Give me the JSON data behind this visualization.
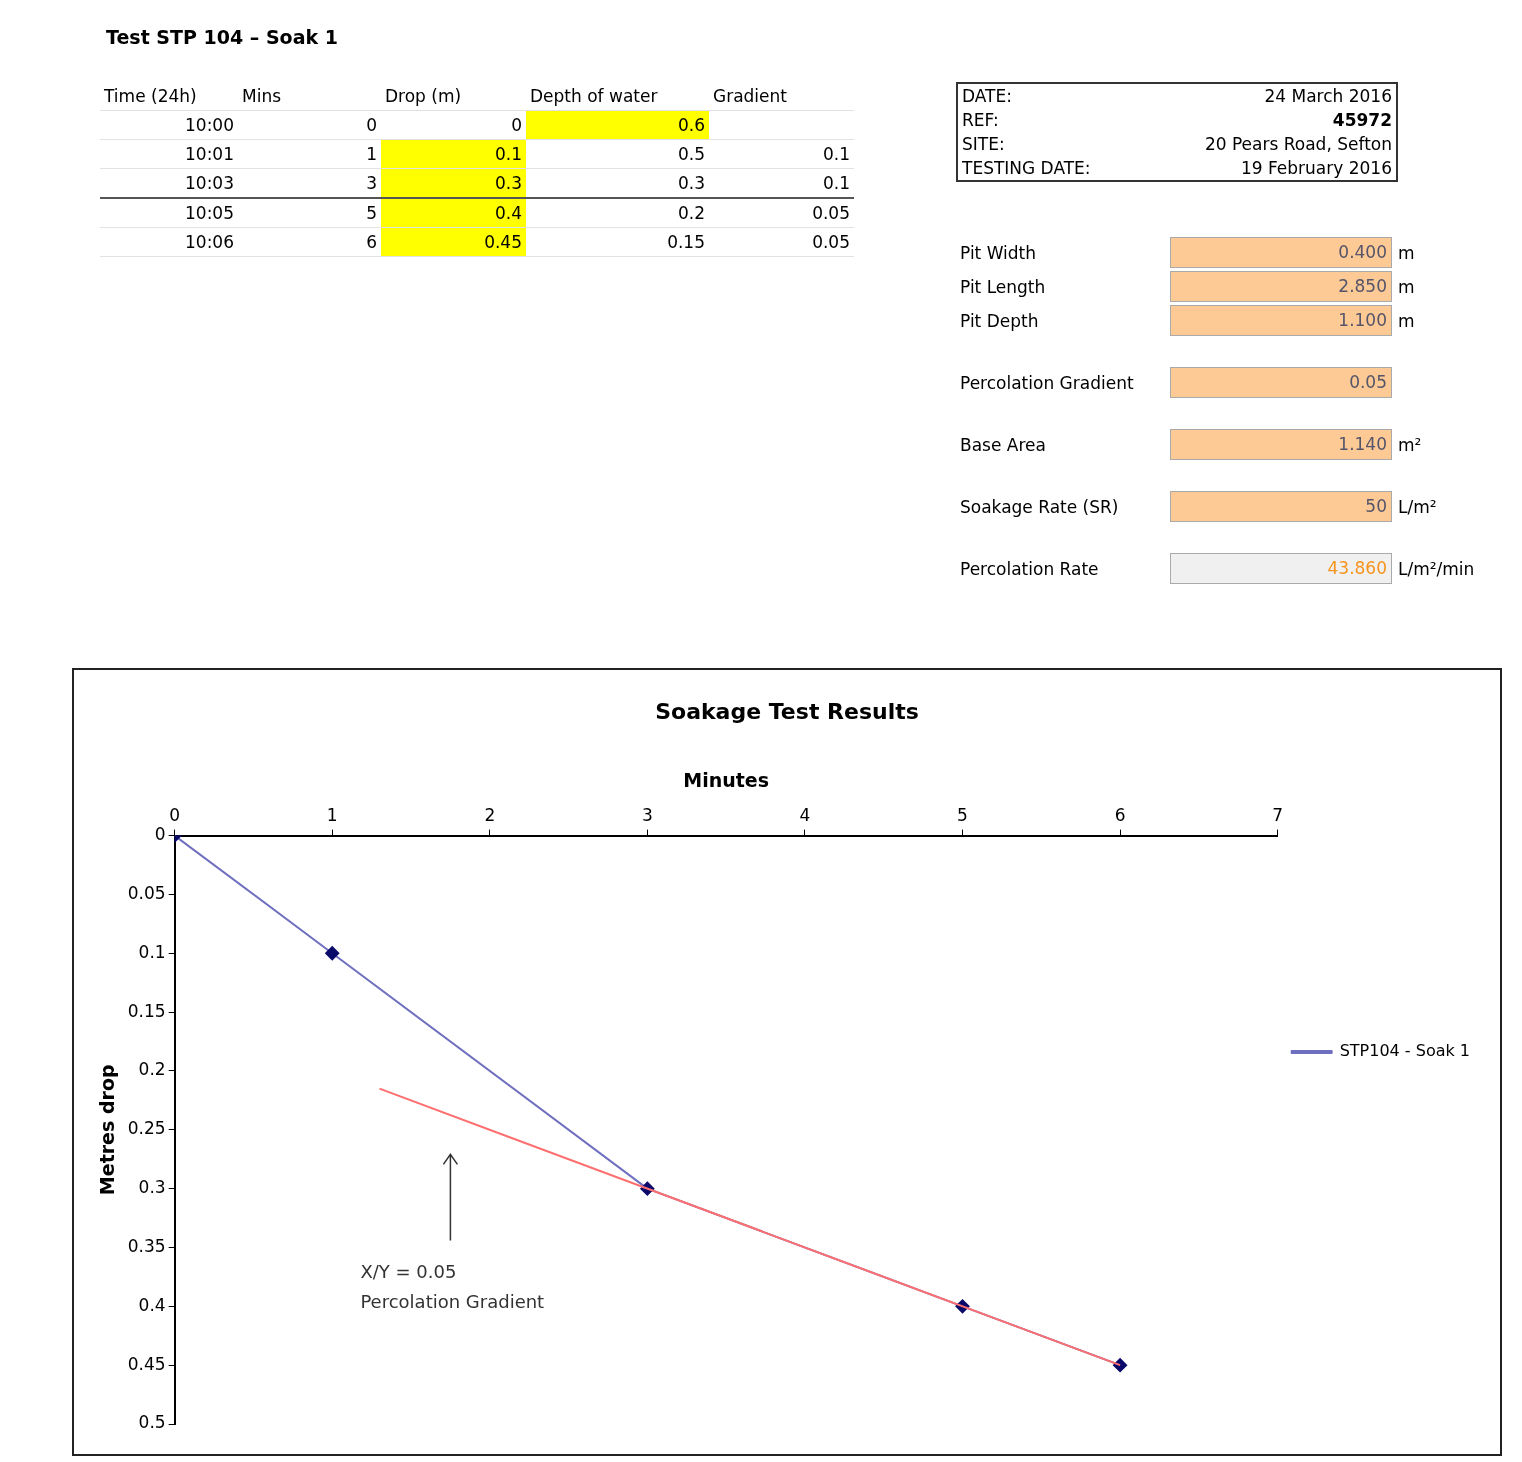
{
  "chart_data": [
    {
      "type": "other",
      "title": "Test STP 104 – Soak 1",
      "categories": [
        "Time (24h)",
        "Mins",
        "Drop (m)",
        "Depth of water",
        "Gradient"
      ],
      "cell_labels": [
        [
          "10:00",
          "0",
          "0",
          "0.6",
          null
        ],
        [
          "10:01",
          "1",
          "0.1",
          "0.5",
          "0.1"
        ],
        [
          "10:03",
          "3",
          "0.3",
          "0.3",
          "0.1"
        ],
        [
          "10:05",
          "5",
          "0.4",
          "0.2",
          "0.05"
        ],
        [
          "10:06",
          "6",
          "0.45",
          "0.15",
          "0.05"
        ]
      ]
    },
    {
      "type": "other",
      "y_categories": [
        "DATE:",
        "REF:",
        "SITE:",
        "TESTING DATE:",
        "Pit Width",
        "Pit Length",
        "Pit Depth",
        "Percolation Gradient",
        "Base Area",
        "Soakage Rate (SR)",
        "Percolation Rate"
      ],
      "cell_labels": [
        [
          "24 March 2016"
        ],
        [
          "45972"
        ],
        [
          "20 Pears Road, Sefton"
        ],
        [
          "19 February 2016"
        ],
        [
          "0.400",
          "m"
        ],
        [
          "2.850",
          "m"
        ],
        [
          "1.100",
          "m"
        ],
        [
          "0.05",
          null
        ],
        [
          "1.140",
          "m²"
        ],
        [
          "50",
          "L/m²"
        ],
        [
          "43.860",
          "L/m²/min"
        ]
      ]
    },
    {
      "type": "line",
      "title": "Soakage Test Results",
      "xlabel": "Minutes",
      "ylabel": "Metres drop",
      "xlim": [
        0,
        7
      ],
      "xticks": [
        0,
        1,
        2,
        3,
        4,
        5,
        6,
        7
      ],
      "ylim": [
        0.5,
        0
      ],
      "yticks": [
        0,
        0.05,
        0.1,
        0.15,
        0.2,
        0.25,
        0.3,
        0.35,
        0.4,
        0.45,
        0.5
      ],
      "grid": false,
      "legend": "right",
      "marker": "diamond",
      "series": [
        {
          "name": "STP104 - Soak 1",
          "color": "#6f6fc0",
          "x": [
            0,
            1,
            3,
            5,
            6
          ],
          "values": [
            0,
            0.1,
            0.3,
            0.4,
            0.45
          ]
        },
        {
          "color": "#ff6f6f",
          "x": [
            1.3,
            6
          ],
          "values": [
            0.215,
            0.45
          ],
          "marker": "none"
        }
      ],
      "annotations": [
        "X/Y = 0.05\nPercolation Gradient"
      ]
    }
  ]
}
